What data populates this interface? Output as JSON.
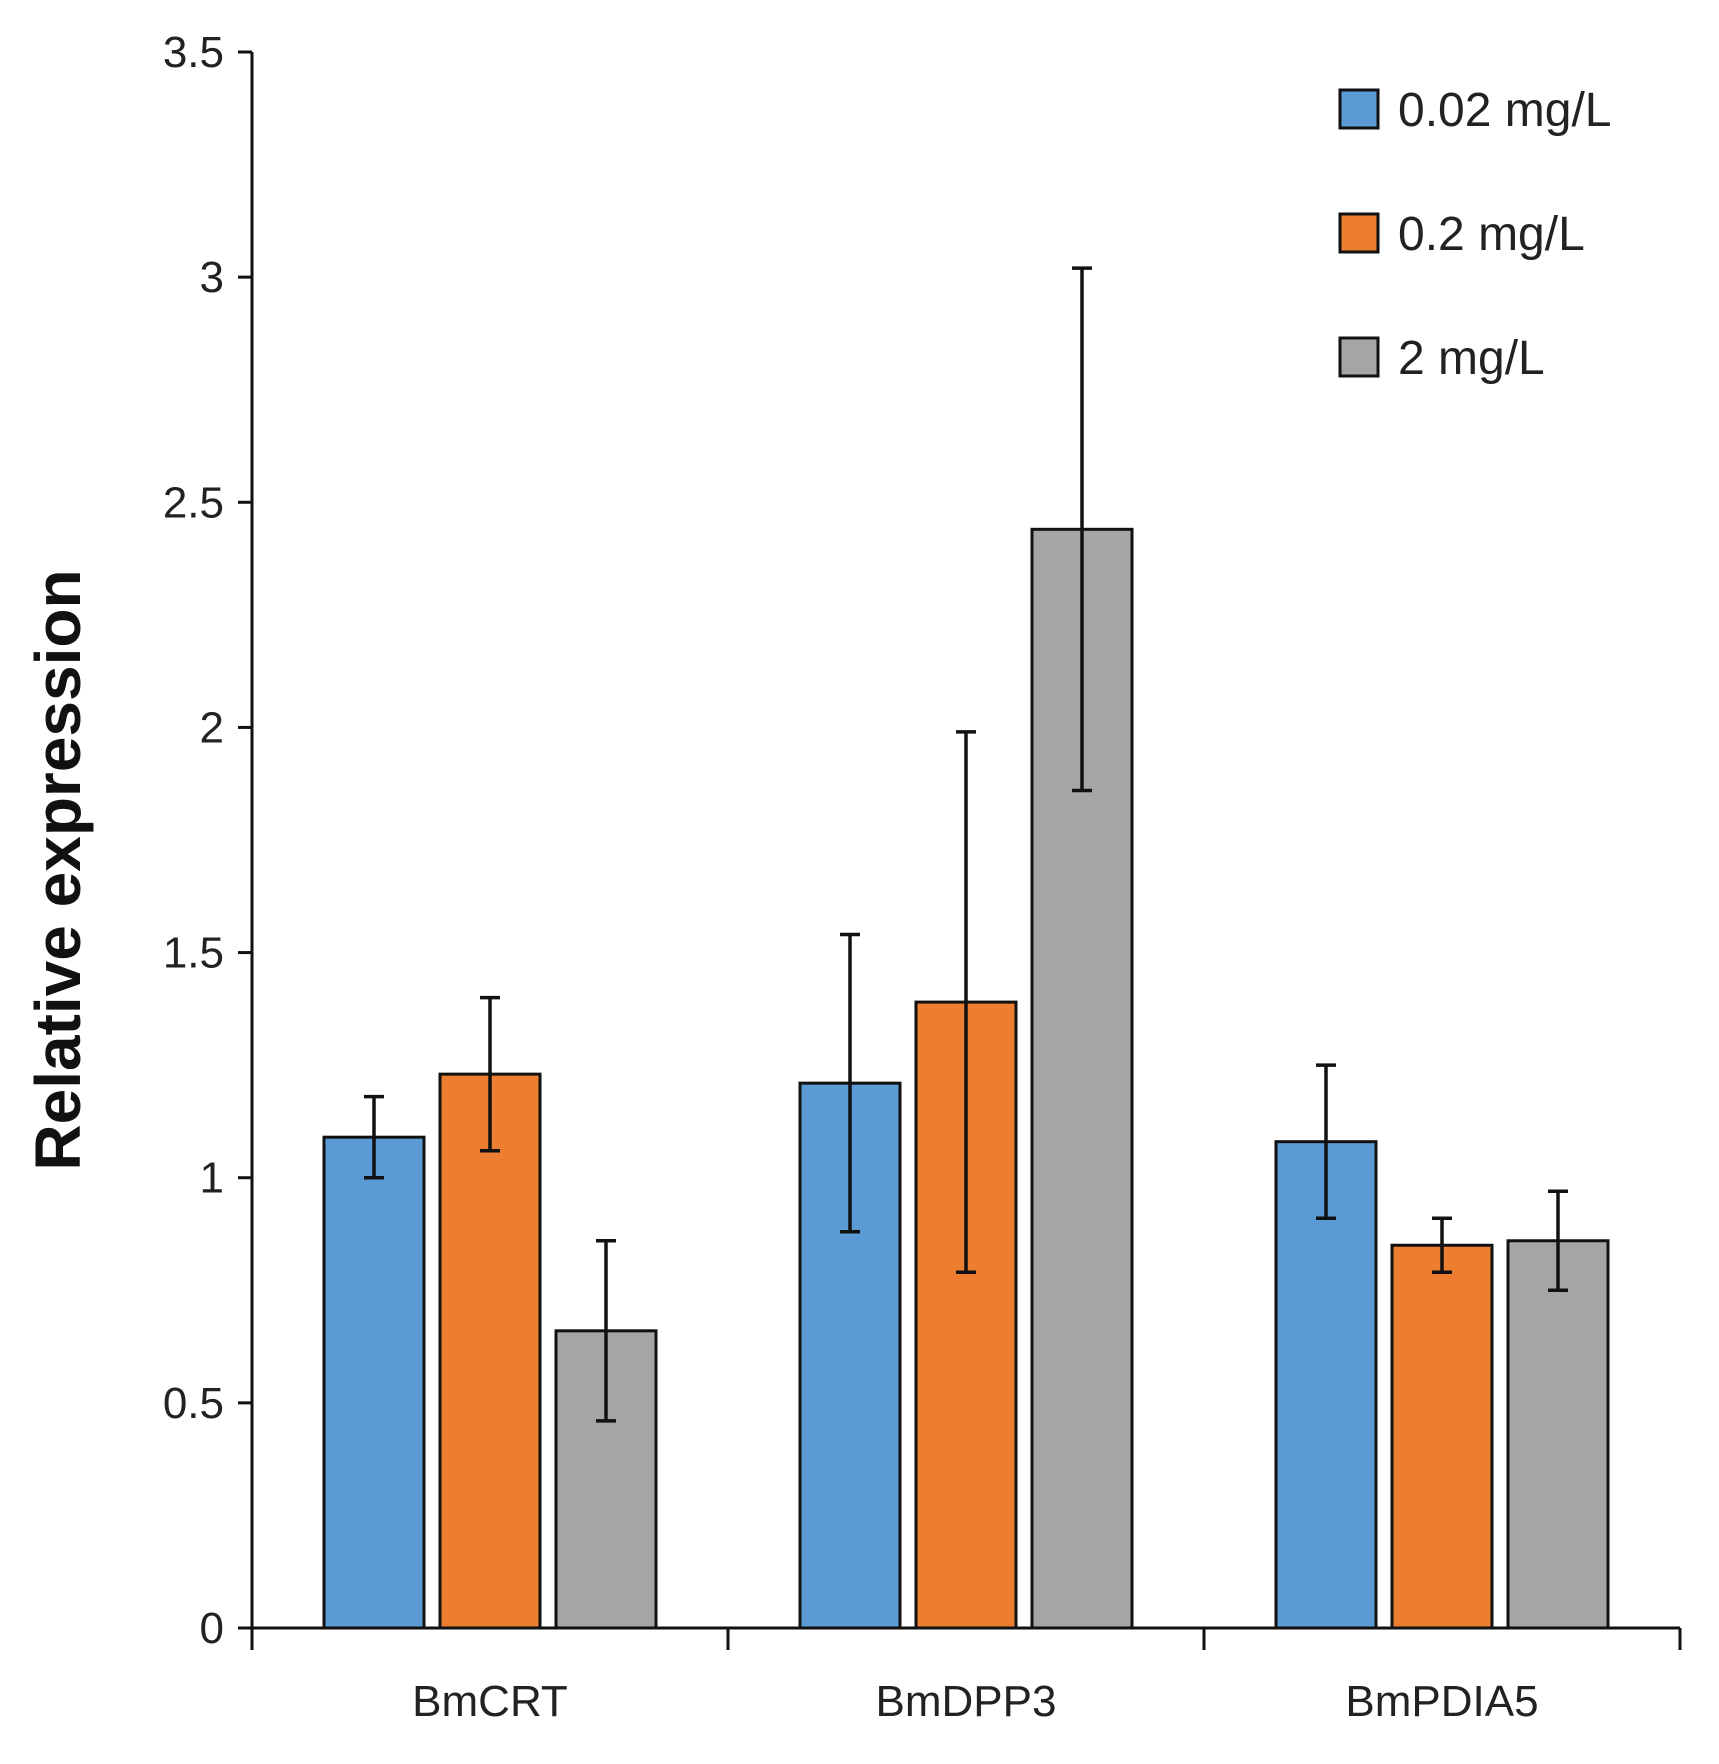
{
  "chart_data": {
    "type": "bar",
    "title": "",
    "xlabel": "",
    "ylabel": "Relative expression",
    "ylim": [
      0,
      3.5
    ],
    "yticks": [
      "0",
      "0.5",
      "1",
      "1.5",
      "2",
      "2.5",
      "3",
      "3.5"
    ],
    "categories": [
      "BmCRT",
      "BmDPP3",
      "BmPDIA5"
    ],
    "grid": false,
    "legend_position": "top-right",
    "error_bars": true,
    "series": [
      {
        "name": "0.02 mg/L",
        "color": "#5b9bd5",
        "values": [
          1.09,
          1.21,
          1.08
        ],
        "errors": [
          0.09,
          0.33,
          0.17
        ]
      },
      {
        "name": "0.2 mg/L",
        "color": "#ed7d31",
        "values": [
          1.23,
          1.39,
          0.85
        ],
        "errors": [
          0.17,
          0.6,
          0.06
        ]
      },
      {
        "name": "2 mg/L",
        "color": "#a5a5a5",
        "values": [
          0.66,
          2.44,
          0.86
        ],
        "errors": [
          0.2,
          0.58,
          0.11
        ]
      }
    ]
  }
}
